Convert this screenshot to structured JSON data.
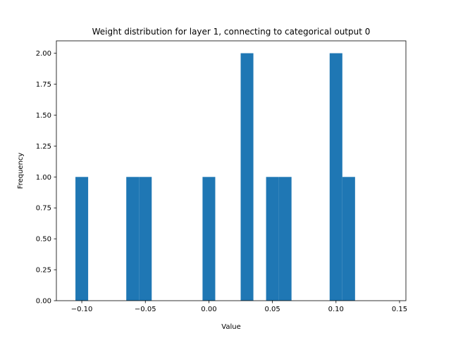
{
  "chart_data": {
    "type": "bar",
    "title": "Weight distribution for layer 1, connecting to categorical output 0",
    "xlabel": "Value",
    "ylabel": "Frequency",
    "xlim": [
      -0.12,
      0.155
    ],
    "ylim": [
      0,
      2.1
    ],
    "grid": false,
    "bar_color": "#1f77b4",
    "bin_width": 0.01,
    "bins": [
      {
        "x": -0.105,
        "value": 1
      },
      {
        "x": -0.065,
        "value": 1
      },
      {
        "x": -0.055,
        "value": 1
      },
      {
        "x": -0.005,
        "value": 1
      },
      {
        "x": 0.025,
        "value": 2
      },
      {
        "x": 0.045,
        "value": 1
      },
      {
        "x": 0.055,
        "value": 1
      },
      {
        "x": 0.095,
        "value": 2
      },
      {
        "x": 0.105,
        "value": 1
      }
    ],
    "x_ticks": [
      {
        "value": -0.1,
        "label": "−0.10"
      },
      {
        "value": -0.05,
        "label": "−0.05"
      },
      {
        "value": 0.0,
        "label": "0.00"
      },
      {
        "value": 0.05,
        "label": "0.05"
      },
      {
        "value": 0.1,
        "label": "0.10"
      },
      {
        "value": 0.15,
        "label": "0.15"
      }
    ],
    "y_ticks": [
      {
        "value": 0.0,
        "label": "0.00"
      },
      {
        "value": 0.25,
        "label": "0.25"
      },
      {
        "value": 0.5,
        "label": "0.50"
      },
      {
        "value": 0.75,
        "label": "0.75"
      },
      {
        "value": 1.0,
        "label": "1.00"
      },
      {
        "value": 1.25,
        "label": "1.25"
      },
      {
        "value": 1.5,
        "label": "1.50"
      },
      {
        "value": 1.75,
        "label": "1.75"
      },
      {
        "value": 2.0,
        "label": "2.00"
      }
    ]
  }
}
